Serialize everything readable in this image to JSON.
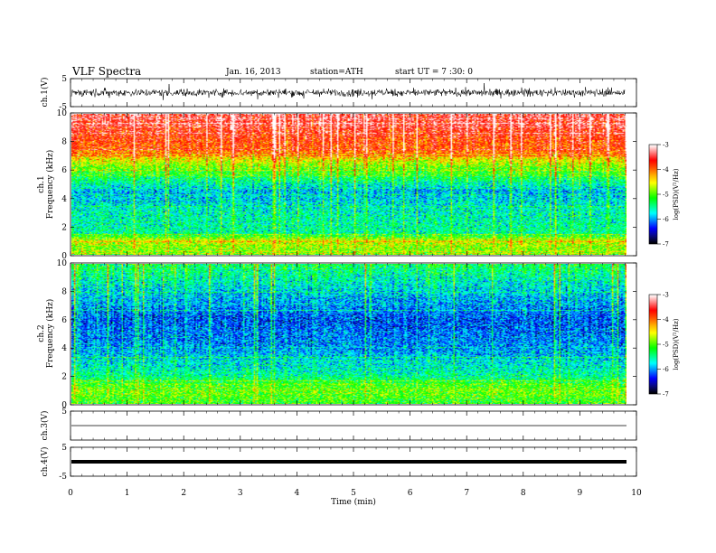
{
  "header": {
    "title": "VLF  Spectra",
    "date": "Jan. 16, 2013",
    "station": "station=ATH",
    "start": "start  UT  =   7  :30: 0"
  },
  "colors": {
    "colormap": [
      "#000000",
      "#0a0a80",
      "#0000ff",
      "#0080ff",
      "#00ffff",
      "#00ff80",
      "#00ff00",
      "#80ff00",
      "#ffff00",
      "#ffb000",
      "#ff5000",
      "#ff0000",
      "#ff8080",
      "#ffffff"
    ]
  },
  "chart_data": [
    {
      "type": "line",
      "name": "ch1-waveform",
      "ylabel": "ch.1(V)",
      "ylim": [
        -5,
        5
      ],
      "yticks": [
        "5",
        "-5"
      ],
      "xlim": [
        0,
        10
      ],
      "trace_amplitude": 1.2
    },
    {
      "type": "heatmap",
      "name": "ch1-spectrogram",
      "ylabel": "ch.1\nFrequency  (kHz)",
      "ylabel_line1": "ch.1",
      "ylabel_line2": "Frequency  (kHz)",
      "ylim": [
        0,
        10
      ],
      "yticks": [
        "0",
        "2",
        "4",
        "6",
        "8",
        "10"
      ],
      "xlim": [
        0,
        10
      ],
      "data_end_min": 9.8,
      "colorbar": {
        "label": "log(PSD)(V²/Hz)",
        "range": [
          -7,
          -3
        ],
        "ticks": [
          "-3",
          "-4",
          "-5",
          "-6",
          "-7"
        ]
      },
      "profile": [
        {
          "f": 0.0,
          "logpsd": -5.0
        },
        {
          "f": 1.0,
          "logpsd": -4.6
        },
        {
          "f": 1.5,
          "logpsd": -5.5
        },
        {
          "f": 3.0,
          "logpsd": -5.6
        },
        {
          "f": 4.5,
          "logpsd": -5.9
        },
        {
          "f": 5.5,
          "logpsd": -5.3
        },
        {
          "f": 6.5,
          "logpsd": -4.7
        },
        {
          "f": 7.5,
          "logpsd": -3.9
        },
        {
          "f": 10.0,
          "logpsd": -3.4
        }
      ]
    },
    {
      "type": "heatmap",
      "name": "ch2-spectrogram",
      "ylabel": "ch.2\nFrequency  (kHz)",
      "ylabel_line1": "ch.2",
      "ylabel_line2": "Frequency  (kHz)",
      "ylim": [
        0,
        10
      ],
      "yticks": [
        "0",
        "2",
        "4",
        "6",
        "8",
        "10"
      ],
      "xlim": [
        0,
        10
      ],
      "data_end_min": 9.8,
      "colorbar": {
        "label": "log(PSD)(V²/Hz)",
        "range": [
          -7,
          -3
        ],
        "ticks": [
          "-3",
          "-4",
          "-5",
          "-6",
          "-7"
        ]
      },
      "profile": [
        {
          "f": 0.0,
          "logpsd": -5.1
        },
        {
          "f": 1.0,
          "logpsd": -4.9
        },
        {
          "f": 2.0,
          "logpsd": -5.5
        },
        {
          "f": 4.0,
          "logpsd": -6.0
        },
        {
          "f": 6.0,
          "logpsd": -6.2
        },
        {
          "f": 8.0,
          "logpsd": -5.8
        },
        {
          "f": 10.0,
          "logpsd": -5.3
        }
      ]
    },
    {
      "type": "line",
      "name": "ch3-waveform",
      "ylabel": "ch.3(V)",
      "ylim": [
        -5,
        5
      ],
      "yticks": [
        "5"
      ],
      "xlim": [
        0,
        10
      ],
      "trace_level": 0
    },
    {
      "type": "line",
      "name": "ch4-waveform",
      "ylabel": "ch.4(V)",
      "ylim": [
        -5,
        5
      ],
      "yticks": [
        "5",
        "-5"
      ],
      "xlim": [
        0,
        10
      ],
      "trace_level": 0
    }
  ],
  "xaxis": {
    "label": "Time  (min)",
    "ticks": [
      "0",
      "1",
      "2",
      "3",
      "4",
      "5",
      "6",
      "7",
      "8",
      "9",
      "10"
    ]
  }
}
